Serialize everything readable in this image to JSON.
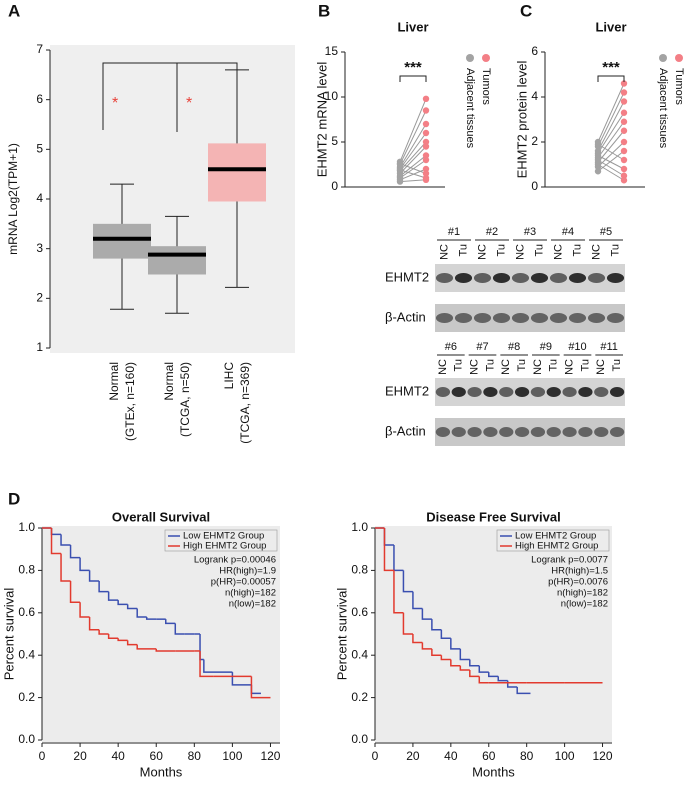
{
  "panel_labels": [
    "A",
    "B",
    "C",
    "D"
  ],
  "chart_data": [
    {
      "type": "box",
      "y_label": "mRNA Log2(TPM+1)",
      "categories": [
        [
          "Normal",
          "(GTEx, n=160)"
        ],
        [
          "Normal",
          "(TCGA, n=50)"
        ],
        [
          "LIHC",
          "(TCGA, n=369)"
        ]
      ],
      "boxes": [
        {
          "low": 1.78,
          "q1": 2.8,
          "median": 3.2,
          "q3": 3.5,
          "high": 4.3,
          "color": "#ababab"
        },
        {
          "low": 1.7,
          "q1": 2.48,
          "median": 2.88,
          "q3": 3.05,
          "high": 3.65,
          "color": "#ababab"
        },
        {
          "low": 2.22,
          "q1": 3.95,
          "median": 4.6,
          "q3": 5.12,
          "high": 6.6,
          "color": "#f4b4b4"
        }
      ],
      "ylim": [
        1,
        7
      ],
      "yticks": [
        1,
        2,
        3,
        4,
        5,
        6,
        7
      ],
      "annotations": [
        "*",
        "*"
      ],
      "annotation_color": "#e8433a"
    },
    {
      "type": "paired",
      "title": "Liver",
      "y_label": "EHMT2 mRNA level",
      "series": [
        {
          "name": "Adjacent tissues",
          "color": "#a3a3a3",
          "values": [
            2.8,
            2.5,
            2.2,
            2.0,
            1.8,
            1.5,
            1.2,
            1.0,
            0.8,
            2.6,
            1.9,
            0.6
          ]
        },
        {
          "name": "Tumors",
          "color": "#f37f86",
          "values": [
            9.8,
            8.5,
            7.0,
            6.0,
            5.0,
            4.5,
            3.5,
            3.0,
            2.0,
            1.5,
            1.0,
            0.8
          ]
        }
      ],
      "ylim": [
        0,
        15
      ],
      "yticks": [
        0,
        5,
        10,
        15
      ],
      "annotation": "***"
    },
    {
      "type": "paired",
      "title": "Liver",
      "y_label": "EHMT2 protein level",
      "series": [
        {
          "name": "Adjacent tissues",
          "color": "#a3a3a3",
          "values": [
            2.0,
            1.8,
            1.6,
            1.5,
            1.3,
            1.1,
            0.9,
            0.7,
            1.9,
            1.4,
            1.2,
            1.0
          ]
        },
        {
          "name": "Tumors",
          "color": "#f37f86",
          "values": [
            4.6,
            4.2,
            3.8,
            3.3,
            2.9,
            2.5,
            2.0,
            1.6,
            1.2,
            0.8,
            0.5,
            0.3
          ]
        }
      ],
      "ylim": [
        0,
        6
      ],
      "yticks": [
        0,
        2,
        4,
        6
      ],
      "annotation": "***"
    },
    {
      "type": "km",
      "title": "Overall Survival",
      "x_label": "Months",
      "y_label": "Percent survival",
      "xlim": [
        0,
        125
      ],
      "xticks": [
        0,
        20,
        40,
        60,
        80,
        100,
        120
      ],
      "ylim": [
        0,
        1
      ],
      "yticks": [
        {
          "value": 0,
          "label": "0.0"
        },
        0.2,
        0.4,
        0.6,
        0.8,
        {
          "value": 1,
          "label": "1.0"
        }
      ],
      "series": [
        {
          "name": "Low EHMT2 Group",
          "color": "#3a4fb0",
          "x": [
            0,
            5,
            10,
            15,
            20,
            25,
            30,
            35,
            40,
            45,
            50,
            55,
            60,
            65,
            70,
            75,
            80,
            83,
            85,
            100,
            110,
            115
          ],
          "values": [
            1,
            0.97,
            0.92,
            0.86,
            0.8,
            0.75,
            0.7,
            0.66,
            0.64,
            0.62,
            0.58,
            0.57,
            0.57,
            0.55,
            0.5,
            0.5,
            0.5,
            0.38,
            0.32,
            0.26,
            0.22,
            0.22
          ]
        },
        {
          "name": "High EHMT2 Group",
          "color": "#e23a2e",
          "x": [
            0,
            5,
            10,
            15,
            20,
            25,
            30,
            35,
            40,
            45,
            50,
            60,
            70,
            80,
            83,
            90,
            100,
            110,
            120
          ],
          "values": [
            1,
            0.88,
            0.75,
            0.65,
            0.58,
            0.52,
            0.5,
            0.48,
            0.47,
            0.45,
            0.43,
            0.42,
            0.42,
            0.42,
            0.3,
            0.3,
            0.3,
            0.2,
            0.2
          ]
        }
      ],
      "stats": [
        "Logrank p=0.00046",
        "HR(high)=1.9",
        "p(HR)=0.00057",
        "n(high)=182",
        "n(low)=182"
      ]
    },
    {
      "type": "km",
      "title": "Disease Free Survival",
      "x_label": "Months",
      "y_label": "Percent survival",
      "xlim": [
        0,
        125
      ],
      "xticks": [
        0,
        20,
        40,
        60,
        80,
        100,
        120
      ],
      "ylim": [
        0,
        1
      ],
      "yticks": [
        {
          "value": 0,
          "label": "0.0"
        },
        0.2,
        0.4,
        0.6,
        0.8,
        {
          "value": 1,
          "label": "1.0"
        }
      ],
      "series": [
        {
          "name": "Low EHMT2 Group",
          "color": "#3a4fb0",
          "x": [
            0,
            5,
            10,
            15,
            20,
            25,
            30,
            35,
            40,
            45,
            50,
            55,
            60,
            65,
            70,
            75,
            82
          ],
          "values": [
            1,
            0.92,
            0.8,
            0.7,
            0.62,
            0.57,
            0.52,
            0.48,
            0.43,
            0.38,
            0.35,
            0.32,
            0.3,
            0.28,
            0.25,
            0.22,
            0.22
          ]
        },
        {
          "name": "High EHMT2 Group",
          "color": "#e23a2e",
          "x": [
            0,
            5,
            10,
            15,
            20,
            25,
            30,
            35,
            40,
            45,
            50,
            55,
            60,
            80,
            100,
            120
          ],
          "values": [
            1,
            0.8,
            0.6,
            0.5,
            0.46,
            0.43,
            0.4,
            0.38,
            0.35,
            0.33,
            0.3,
            0.27,
            0.27,
            0.27,
            0.27,
            0.27
          ]
        }
      ],
      "stats": [
        "Logrank p=0.0077",
        "HR(high)=1.5",
        "p(HR)=0.0076",
        "n(high)=182",
        "n(low)=182"
      ]
    }
  ],
  "blot": {
    "groups_top": [
      "#1",
      "#2",
      "#3",
      "#4",
      "#5"
    ],
    "groups_bottom": [
      "#6",
      "#7",
      "#8",
      "#9",
      "#10",
      "#11"
    ],
    "lanes": [
      "NC",
      "Tu"
    ],
    "proteins": [
      "EHMT2",
      "β-Actin"
    ]
  }
}
